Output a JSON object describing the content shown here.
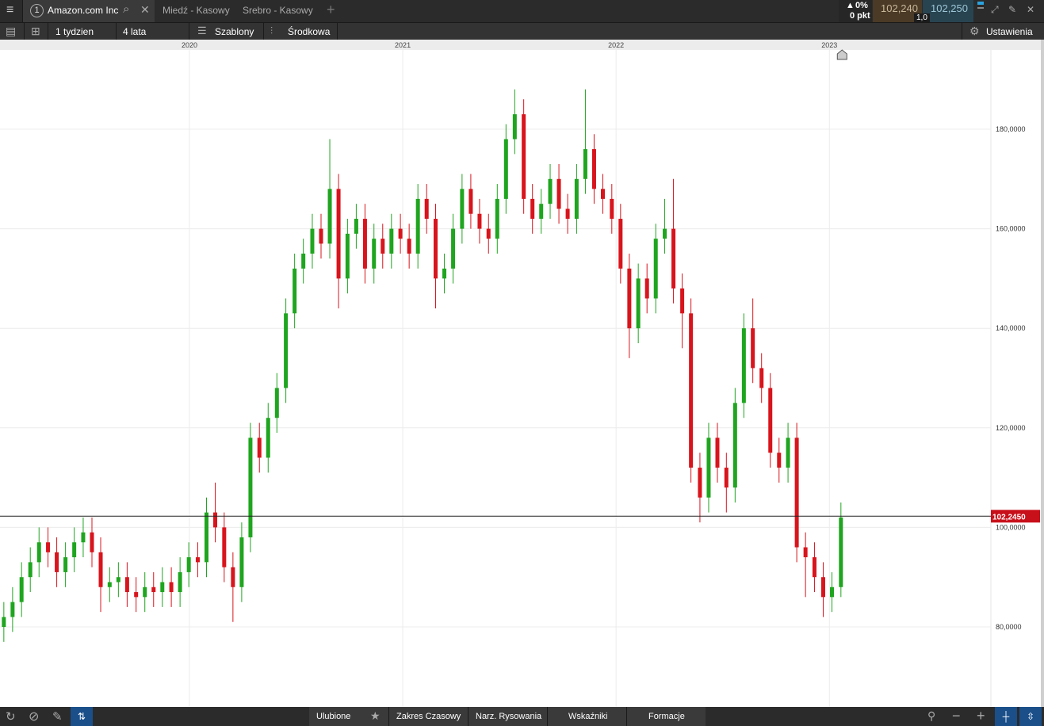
{
  "ui": {
    "tab_number": "1",
    "tabs": [
      "Amazon.com Inc",
      "Miedź - Kasowy",
      "Srebro - Kasowy"
    ],
    "change_pct": "0%",
    "change_pts": "0 pkt",
    "sell": "102,240",
    "buy": "102,250",
    "spread": "1,0",
    "toolbar": [
      "1 tydzien",
      "4 lata",
      "Szablony",
      "Środkowa"
    ],
    "settings": "Ustawienia",
    "bottom": [
      "Ulubione",
      "Zakres Czasowy",
      "Narz. Rysowania",
      "Wskaźniki",
      "Formacje"
    ]
  },
  "chart_data": {
    "type": "candlestick",
    "up_color": "#1fa51f",
    "down_color": "#d8141c",
    "grid": true,
    "xlim": [
      2019.112,
      2023.757
    ],
    "xticks": [
      2020,
      2021,
      2022,
      2023
    ],
    "ylim": [
      63.92,
      195.92
    ],
    "yticks": [
      {
        "value": 80,
        "label": "80,0000"
      },
      {
        "value": 100,
        "label": "100,0000"
      },
      {
        "value": 120,
        "label": "120,0000"
      },
      {
        "value": 140,
        "label": "140,0000"
      },
      {
        "value": 160,
        "label": "160,0000"
      },
      {
        "value": 180,
        "label": "180,0000"
      }
    ],
    "current_price": {
      "value": 102.245,
      "label": "102,2450"
    },
    "x": [
      2019.13,
      2019.171,
      2019.213,
      2019.254,
      2019.295,
      2019.337,
      2019.378,
      2019.419,
      2019.46,
      2019.502,
      2019.543,
      2019.584,
      2019.626,
      2019.667,
      2019.708,
      2019.75,
      2019.791,
      2019.832,
      2019.873,
      2019.915,
      2019.956,
      2019.997,
      2020.039,
      2020.08,
      2020.121,
      2020.163,
      2020.204,
      2020.245,
      2020.286,
      2020.328,
      2020.369,
      2020.41,
      2020.452,
      2020.493,
      2020.534,
      2020.576,
      2020.617,
      2020.658,
      2020.699,
      2020.741,
      2020.782,
      2020.823,
      2020.865,
      2020.906,
      2020.947,
      2020.989,
      2021.03,
      2021.071,
      2021.112,
      2021.154,
      2021.195,
      2021.236,
      2021.278,
      2021.319,
      2021.36,
      2021.402,
      2021.443,
      2021.484,
      2021.525,
      2021.567,
      2021.608,
      2021.649,
      2021.691,
      2021.732,
      2021.773,
      2021.815,
      2021.856,
      2021.897,
      2021.938,
      2021.98,
      2022.021,
      2022.062,
      2022.104,
      2022.145,
      2022.186,
      2022.228,
      2022.269,
      2022.31,
      2022.351,
      2022.393,
      2022.434,
      2022.475,
      2022.517,
      2022.558,
      2022.599,
      2022.641,
      2022.682,
      2022.723,
      2022.764,
      2022.806,
      2022.847,
      2022.888,
      2022.93,
      2022.971,
      2023.012,
      2023.054
    ],
    "open": [
      80,
      82,
      85,
      90,
      93,
      97,
      95,
      91,
      94,
      97,
      99,
      95,
      88,
      89,
      90,
      87,
      86,
      88,
      87,
      89,
      87,
      91,
      94,
      93,
      103,
      100,
      92,
      88,
      98,
      118,
      114,
      122,
      128,
      143,
      152,
      155,
      160,
      157,
      168,
      150,
      159,
      162,
      152,
      158,
      155,
      160,
      158,
      155,
      166,
      162,
      150,
      152,
      160,
      168,
      163,
      160,
      158,
      166,
      178,
      183,
      166,
      162,
      165,
      170,
      164,
      162,
      170,
      176,
      168,
      166,
      162,
      152,
      140,
      150,
      146,
      158,
      160,
      148,
      143,
      112,
      106,
      118,
      112,
      108,
      125,
      140,
      132,
      128,
      115,
      112,
      118,
      96,
      94,
      90,
      86,
      88
    ],
    "high": [
      85,
      88,
      93,
      96,
      100,
      100,
      98,
      97,
      100,
      102,
      102,
      98,
      92,
      93,
      93,
      90,
      91,
      91,
      92,
      92,
      94,
      97,
      97,
      106,
      109,
      103,
      95,
      101,
      121,
      121,
      125,
      131,
      146,
      155,
      158,
      163,
      163,
      178,
      171,
      162,
      165,
      165,
      161,
      161,
      163,
      163,
      161,
      169,
      169,
      165,
      155,
      163,
      171,
      171,
      166,
      163,
      169,
      181,
      188,
      186,
      169,
      168,
      173,
      173,
      167,
      173,
      188,
      179,
      171,
      169,
      165,
      155,
      153,
      153,
      161,
      166,
      170,
      151,
      146,
      115,
      121,
      121,
      115,
      128,
      143,
      146,
      135,
      131,
      118,
      121,
      121,
      99,
      97,
      93,
      91,
      105
    ],
    "low": [
      77,
      79,
      82,
      87,
      90,
      92,
      88,
      88,
      91,
      94,
      92,
      83,
      85,
      86,
      84,
      83,
      83,
      84,
      84,
      84,
      84,
      88,
      90,
      90,
      97,
      89,
      81,
      85,
      95,
      111,
      111,
      119,
      125,
      140,
      149,
      152,
      154,
      154,
      144,
      147,
      156,
      149,
      149,
      152,
      152,
      155,
      152,
      152,
      159,
      144,
      147,
      149,
      157,
      160,
      157,
      155,
      155,
      163,
      175,
      163,
      159,
      159,
      162,
      161,
      159,
      159,
      167,
      165,
      163,
      159,
      149,
      134,
      137,
      143,
      143,
      155,
      145,
      136,
      109,
      101,
      103,
      109,
      103,
      105,
      122,
      129,
      125,
      112,
      109,
      109,
      93,
      86,
      87,
      82,
      83,
      86
    ],
    "close": [
      82,
      85,
      90,
      93,
      97,
      95,
      91,
      94,
      97,
      99,
      95,
      88,
      89,
      90,
      87,
      86,
      88,
      87,
      89,
      87,
      91,
      94,
      93,
      103,
      100,
      92,
      88,
      98,
      118,
      114,
      122,
      128,
      143,
      152,
      155,
      160,
      157,
      168,
      150,
      159,
      162,
      152,
      158,
      155,
      160,
      158,
      155,
      166,
      162,
      150,
      152,
      160,
      168,
      163,
      160,
      158,
      166,
      178,
      183,
      166,
      162,
      165,
      170,
      164,
      162,
      170,
      176,
      168,
      166,
      162,
      152,
      140,
      150,
      146,
      158,
      160,
      148,
      143,
      112,
      106,
      118,
      112,
      108,
      125,
      140,
      132,
      128,
      115,
      112,
      118,
      96,
      94,
      90,
      86,
      88,
      102
    ]
  }
}
